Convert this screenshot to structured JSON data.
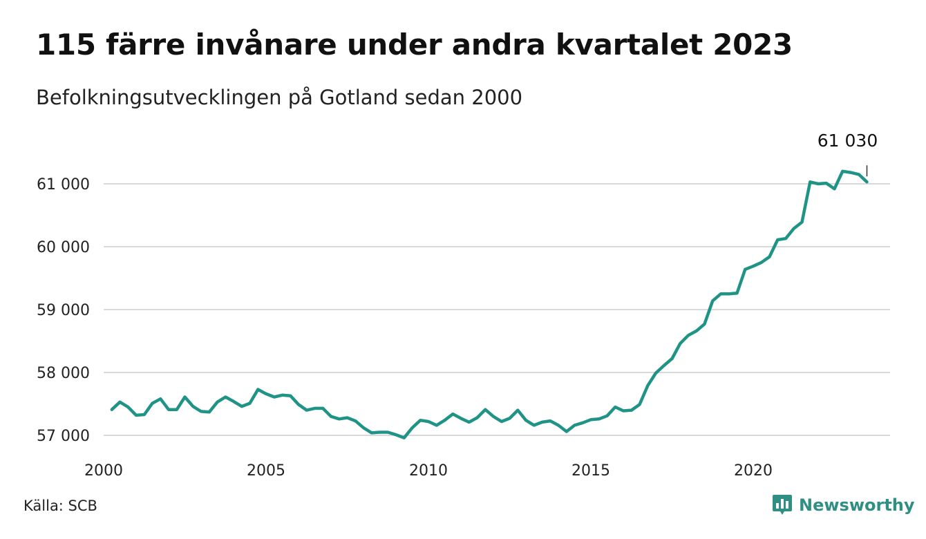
{
  "title": "115 färre invånare under andra kvartalet 2023",
  "subtitle": "Befolkningsutvecklingen på Gotland sedan 2000",
  "source": "Källa: SCB",
  "brand": {
    "name": "Newsworthy",
    "color": "#2f8f83",
    "icon": "bar-chart-speech-icon"
  },
  "end_label": "61 030",
  "colors": {
    "line": "#1f9486",
    "grid": "#d9d9d9",
    "text": "#222222"
  },
  "chart_data": {
    "type": "line",
    "title": "115 färre invånare under andra kvartalet 2023",
    "subtitle": "Befolkningsutvecklingen på Gotland sedan 2000",
    "xlabel": "",
    "ylabel": "",
    "xlim": [
      2000.0,
      2023.75
    ],
    "ylim": [
      56850,
      61300
    ],
    "x_ticks": [
      2000,
      2005,
      2010,
      2015,
      2020
    ],
    "x_tick_labels": [
      "2000",
      "2005",
      "2010",
      "2015",
      "2020"
    ],
    "y_ticks": [
      57000,
      58000,
      59000,
      60000,
      61000
    ],
    "y_tick_labels": [
      "57 000",
      "58 000",
      "59 000",
      "60 000",
      "61 000"
    ],
    "grid": "horizontal",
    "legend": "none",
    "series": [
      {
        "x": [
          2000.25,
          2000.5,
          2000.75,
          2001.0,
          2001.25,
          2001.5,
          2001.75,
          2002.0,
          2002.25,
          2002.5,
          2002.75,
          2003.0,
          2003.25,
          2003.5,
          2003.75,
          2004.0,
          2004.25,
          2004.5,
          2004.75,
          2005.0,
          2005.25,
          2005.5,
          2005.75,
          2006.0,
          2006.25,
          2006.5,
          2006.75,
          2007.0,
          2007.25,
          2007.5,
          2007.75,
          2008.0,
          2008.25,
          2008.5,
          2008.75,
          2009.0,
          2009.25,
          2009.5,
          2009.75,
          2010.0,
          2010.25,
          2010.5,
          2010.75,
          2011.0,
          2011.25,
          2011.5,
          2011.75,
          2012.0,
          2012.25,
          2012.5,
          2012.75,
          2013.0,
          2013.25,
          2013.5,
          2013.75,
          2014.0,
          2014.25,
          2014.5,
          2014.75,
          2015.0,
          2015.25,
          2015.5,
          2015.75,
          2016.0,
          2016.25,
          2016.5,
          2016.75,
          2017.0,
          2017.25,
          2017.5,
          2017.75,
          2018.0,
          2018.25,
          2018.5,
          2018.75,
          2019.0,
          2019.25,
          2019.5,
          2019.75,
          2020.0,
          2020.25,
          2020.5,
          2020.75,
          2021.0,
          2021.25,
          2021.5,
          2021.75,
          2022.0,
          2022.25,
          2022.5,
          2022.75,
          2023.0,
          2023.25,
          2023.5
        ],
        "values": [
          57410,
          57530,
          57450,
          57320,
          57330,
          57510,
          57580,
          57410,
          57410,
          57610,
          57460,
          57380,
          57370,
          57530,
          57610,
          57540,
          57460,
          57510,
          57730,
          57660,
          57610,
          57640,
          57630,
          57490,
          57400,
          57430,
          57430,
          57300,
          57260,
          57280,
          57230,
          57120,
          57040,
          57050,
          57050,
          57010,
          56960,
          57120,
          57240,
          57220,
          57160,
          57240,
          57340,
          57270,
          57210,
          57280,
          57410,
          57300,
          57220,
          57270,
          57400,
          57240,
          57160,
          57210,
          57230,
          57160,
          57060,
          57160,
          57200,
          57250,
          57260,
          57310,
          57450,
          57390,
          57400,
          57490,
          57790,
          57990,
          58110,
          58220,
          58460,
          58590,
          58660,
          58770,
          59140,
          59250,
          59250,
          59260,
          59640,
          59690,
          59750,
          59840,
          60110,
          60130,
          60290,
          60390,
          61030,
          61000,
          61010,
          60920,
          61200,
          61180,
          61150,
          61030
        ]
      }
    ]
  }
}
